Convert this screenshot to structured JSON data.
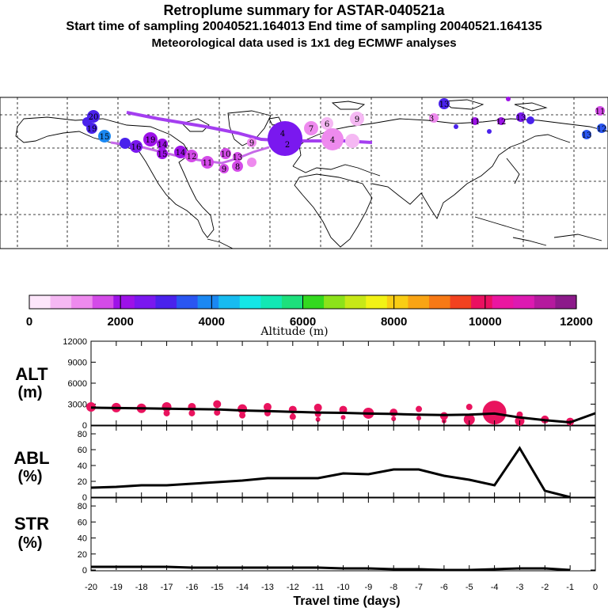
{
  "header": {
    "title": "Retroplume summary for ASTAR-040521a",
    "subtitle": "Start time of sampling 20040521.164013     End time of sampling 20040521.164135",
    "meteo": "Meteorological data used is 1x1 deg ECMWF analyses"
  },
  "colorbar": {
    "label": "Altitude (m)",
    "ticks": [
      "0",
      "2000",
      "4000",
      "6000",
      "8000",
      "10000",
      "12000"
    ],
    "colors": [
      "#fde6fb",
      "#f5b8f3",
      "#ee8aee",
      "#d44be8",
      "#9d12e8",
      "#7a18ef",
      "#4a22ec",
      "#2a56f2",
      "#1b88f2",
      "#17bbf0",
      "#14e7e6",
      "#12e8b4",
      "#1de07c",
      "#33d91f",
      "#8ce21a",
      "#c7e817",
      "#f2f215",
      "#f9cd14",
      "#f9a414",
      "#f77915",
      "#f24220",
      "#ea1060",
      "#ea16a0",
      "#dd1ab1",
      "#b51a9e",
      "#8c1a8a"
    ]
  },
  "map": {
    "overlay_color": "#a43ef0",
    "labels": [
      {
        "text": "20",
        "x": 118,
        "y": 147
      },
      {
        "text": "19",
        "x": 116,
        "y": 162
      },
      {
        "text": "15",
        "x": 132,
        "y": 172
      },
      {
        "text": "16",
        "x": 172,
        "y": 185
      },
      {
        "text": "19",
        "x": 190,
        "y": 176
      },
      {
        "text": "14",
        "x": 205,
        "y": 182
      },
      {
        "text": "15",
        "x": 205,
        "y": 194
      },
      {
        "text": "14",
        "x": 228,
        "y": 192
      },
      {
        "text": "12",
        "x": 242,
        "y": 197
      },
      {
        "text": "11",
        "x": 262,
        "y": 205
      },
      {
        "text": "10",
        "x": 285,
        "y": 194
      },
      {
        "text": "13",
        "x": 300,
        "y": 198
      },
      {
        "text": "9",
        "x": 283,
        "y": 213
      },
      {
        "text": "8",
        "x": 300,
        "y": 210
      },
      {
        "text": "9",
        "x": 318,
        "y": 180
      },
      {
        "text": "4",
        "x": 357,
        "y": 168
      },
      {
        "text": "2",
        "x": 363,
        "y": 182
      },
      {
        "text": "7",
        "x": 393,
        "y": 162
      },
      {
        "text": "6",
        "x": 413,
        "y": 156
      },
      {
        "text": "9",
        "x": 451,
        "y": 150
      },
      {
        "text": "4",
        "x": 420,
        "y": 176
      },
      {
        "text": "3",
        "x": 545,
        "y": 149
      },
      {
        "text": "13",
        "x": 561,
        "y": 131
      },
      {
        "text": "11",
        "x": 600,
        "y": 153
      },
      {
        "text": "12",
        "x": 633,
        "y": 153
      },
      {
        "text": "13",
        "x": 658,
        "y": 148
      },
      {
        "text": "13",
        "x": 741,
        "y": 170
      },
      {
        "text": "12",
        "x": 760,
        "y": 162
      },
      {
        "text": "11",
        "x": 758,
        "y": 140
      }
    ]
  },
  "panels": [
    {
      "label1": "ALT",
      "label2": "(m)",
      "yticks": [
        "0",
        "3000",
        "6000",
        "9000",
        "12000"
      ]
    },
    {
      "label1": "ABL",
      "label2": "(%)",
      "yticks": [
        "0",
        "20",
        "40",
        "60",
        "80"
      ]
    },
    {
      "label1": "STR",
      "label2": "(%)",
      "yticks": [
        "0",
        "20",
        "40",
        "60",
        "80"
      ]
    }
  ],
  "xaxis": {
    "label": "Travel time (days)",
    "ticks": [
      "-20",
      "-19",
      "-18",
      "-17",
      "-16",
      "-15",
      "-14",
      "-13",
      "-12",
      "-11",
      "-10",
      "-9",
      "-8",
      "-7",
      "-6",
      "-5",
      "-4",
      "-3",
      "-2",
      "-1",
      "0"
    ]
  },
  "chart_data": [
    {
      "type": "line",
      "title": "ALT (m)",
      "xlabel": "Travel time (days)",
      "ylabel": "Altitude (m)",
      "xlim": [
        -20,
        0
      ],
      "ylim": [
        0,
        12000
      ],
      "line": {
        "x": [
          -20,
          -19,
          -18,
          -17,
          -16,
          -15,
          -14,
          -13,
          -12,
          -11,
          -10,
          -9,
          -8,
          -7,
          -6,
          -5,
          -4,
          -3,
          -2,
          -1,
          0
        ],
        "y": [
          2500,
          2450,
          2400,
          2350,
          2300,
          2250,
          2100,
          2000,
          1900,
          1800,
          1750,
          1650,
          1600,
          1500,
          1450,
          1500,
          1650,
          1100,
          700,
          400,
          1700
        ]
      },
      "points": [
        {
          "x": -20,
          "y": 2600,
          "s": 6
        },
        {
          "x": -19,
          "y": 2500,
          "s": 6
        },
        {
          "x": -18,
          "y": 2400,
          "s": 6
        },
        {
          "x": -17,
          "y": 2600,
          "s": 6
        },
        {
          "x": -17,
          "y": 1700,
          "s": 4
        },
        {
          "x": -16,
          "y": 2600,
          "s": 5
        },
        {
          "x": -16,
          "y": 1700,
          "s": 4
        },
        {
          "x": -15,
          "y": 3000,
          "s": 5
        },
        {
          "x": -15,
          "y": 1800,
          "s": 4
        },
        {
          "x": -14,
          "y": 2300,
          "s": 6
        },
        {
          "x": -14,
          "y": 1400,
          "s": 4
        },
        {
          "x": -13,
          "y": 2600,
          "s": 5
        },
        {
          "x": -13,
          "y": 1700,
          "s": 4
        },
        {
          "x": -12,
          "y": 2200,
          "s": 5
        },
        {
          "x": -12,
          "y": 1200,
          "s": 4
        },
        {
          "x": -11,
          "y": 2500,
          "s": 5
        },
        {
          "x": -11,
          "y": 1600,
          "s": 4
        },
        {
          "x": -11,
          "y": 800,
          "s": 3
        },
        {
          "x": -10,
          "y": 2200,
          "s": 5
        },
        {
          "x": -10,
          "y": 1100,
          "s": 3
        },
        {
          "x": -9,
          "y": 1700,
          "s": 7
        },
        {
          "x": -8,
          "y": 1800,
          "s": 5
        },
        {
          "x": -8,
          "y": 900,
          "s": 3
        },
        {
          "x": -7,
          "y": 2300,
          "s": 4
        },
        {
          "x": -7,
          "y": 1000,
          "s": 3
        },
        {
          "x": -6,
          "y": 1300,
          "s": 5
        },
        {
          "x": -6,
          "y": 600,
          "s": 3
        },
        {
          "x": -5,
          "y": 2600,
          "s": 4
        },
        {
          "x": -5,
          "y": 800,
          "s": 7
        },
        {
          "x": -4,
          "y": 1800,
          "s": 15
        },
        {
          "x": -3,
          "y": 600,
          "s": 6
        },
        {
          "x": -3,
          "y": 1500,
          "s": 4
        },
        {
          "x": -2,
          "y": 800,
          "s": 5
        },
        {
          "x": -1,
          "y": 500,
          "s": 5
        }
      ],
      "point_color": "#e9135e"
    },
    {
      "type": "line",
      "title": "ABL (%)",
      "xlabel": "Travel time (days)",
      "ylabel": "ABL (%)",
      "xlim": [
        -20,
        0
      ],
      "ylim": [
        0,
        90
      ],
      "x": [
        -20,
        -19,
        -18,
        -17,
        -16,
        -15,
        -14,
        -13,
        -12,
        -11,
        -10,
        -9,
        -8,
        -7,
        -6,
        -5,
        -4,
        -3,
        -2,
        -1
      ],
      "y": [
        12,
        13,
        15,
        15,
        17,
        19,
        21,
        24,
        24,
        24,
        30,
        29,
        35,
        35,
        27,
        22,
        15,
        62,
        8,
        0
      ]
    },
    {
      "type": "line",
      "title": "STR (%)",
      "xlabel": "Travel time (days)",
      "ylabel": "STR (%)",
      "xlim": [
        -20,
        0
      ],
      "ylim": [
        0,
        90
      ],
      "x": [
        -20,
        -19,
        -18,
        -17,
        -16,
        -15,
        -14,
        -13,
        -12,
        -11,
        -10,
        -9,
        -8,
        -7,
        -6,
        -5,
        -4,
        -3,
        -2,
        -1
      ],
      "y": [
        4,
        4,
        4,
        4,
        3,
        3,
        3,
        3,
        3,
        3,
        2,
        2,
        1,
        1,
        0,
        0,
        1,
        2,
        2,
        0
      ]
    }
  ]
}
